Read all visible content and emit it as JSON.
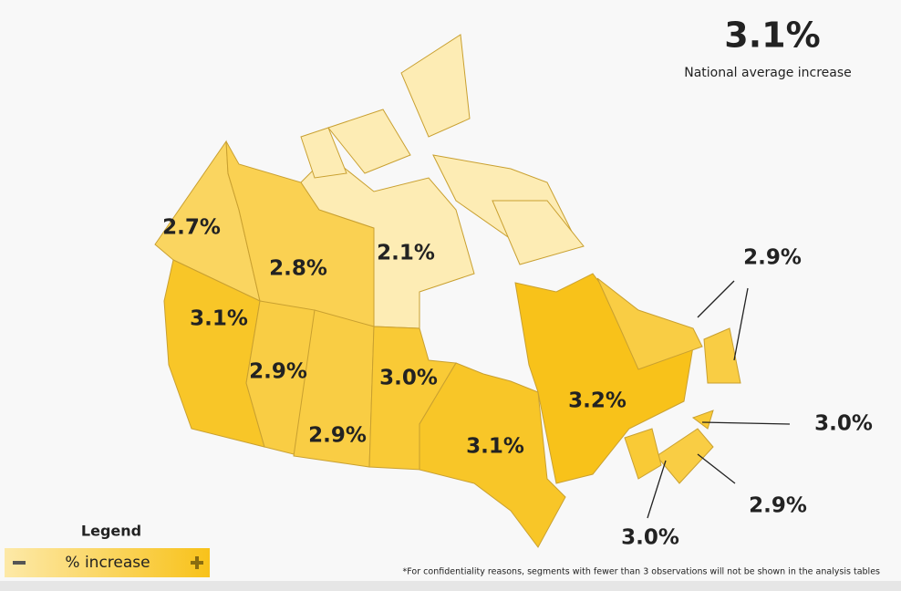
{
  "national": {
    "value": 3.1,
    "label": "3.1%",
    "caption": "National average increase"
  },
  "regions": [
    {
      "value": 2.7,
      "label": "2.7%"
    },
    {
      "value": 2.8,
      "label": "2.8%"
    },
    {
      "value": 2.1,
      "label": "2.1%"
    },
    {
      "value": 3.1,
      "label": "3.1%"
    },
    {
      "value": 2.9,
      "label": "2.9%"
    },
    {
      "value": 2.9,
      "label": "2.9%"
    },
    {
      "value": 3.0,
      "label": "3.0%"
    },
    {
      "value": 3.1,
      "label": "3.1%"
    },
    {
      "value": 3.2,
      "label": "3.2%"
    },
    {
      "value": 2.9,
      "label": "2.9%"
    },
    {
      "value": 3.0,
      "label": "3.0%"
    },
    {
      "value": 2.9,
      "label": "2.9%"
    },
    {
      "value": 3.0,
      "label": "3.0%"
    }
  ],
  "legend": {
    "title": "Legend",
    "label": "% increase"
  },
  "footnote": "*For confidentiality reasons, segments with fewer than 3 observations will not be shown in the analysis tables"
}
